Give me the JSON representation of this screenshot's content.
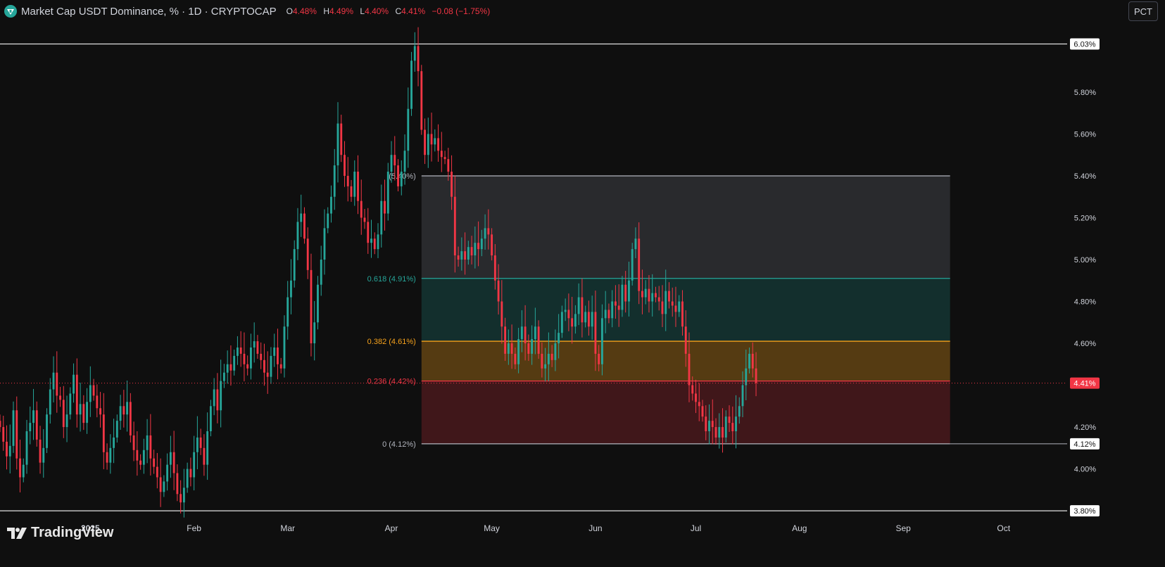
{
  "header": {
    "title": "Market Cap USDT Dominance, % · 1D · CRYPTOCAP",
    "open_label": "O",
    "open": "4.48%",
    "high_label": "H",
    "high": "4.49%",
    "low_label": "L",
    "low": "4.40%",
    "close_label": "C",
    "close": "4.41%",
    "change": "−0.08 (−1.75%)"
  },
  "scale_button": "PCT",
  "brand": "TradingView",
  "colors": {
    "background": "#0f0f0f",
    "up": "#26a69a",
    "down": "#f23645",
    "fib_0618": "#26a69a",
    "fib_0382": "#f7a21b",
    "fib_0236": "#f23645"
  },
  "chart_data": {
    "type": "candlestick",
    "symbol": "USDT.D",
    "y_unit": "%",
    "y_ticks": [
      4.0,
      4.2,
      4.6,
      4.8,
      5.0,
      5.2,
      5.4,
      5.6,
      5.8
    ],
    "y_tick_labels": [
      "4.00%",
      "4.20%",
      "4.60%",
      "4.80%",
      "5.00%",
      "5.20%",
      "5.40%",
      "5.60%",
      "5.80%"
    ],
    "ylim": [
      3.76,
      6.24
    ],
    "x_ticks": [
      "2025",
      "Feb",
      "Mar",
      "Apr",
      "May",
      "Jun",
      "Jul",
      "Aug",
      "Sep",
      "Oct"
    ],
    "x_range": [
      "2024-12-05",
      "2025-10-20"
    ],
    "horizontal_lines": [
      {
        "value": 6.03,
        "label": "6.03%"
      },
      {
        "value": 3.8,
        "label": "3.80%"
      }
    ],
    "last_price": {
      "value": 4.41,
      "label": "4.41%"
    },
    "fib_retracement": {
      "start_date": "2025-04-10",
      "end_date": "2025-09-15",
      "levels": [
        {
          "ratio": "0",
          "value": 4.12,
          "label": "0 (4.12%)",
          "axis_label": "4.12%"
        },
        {
          "ratio": "0.236",
          "value": 4.42,
          "label": "0.236 (4.42%)"
        },
        {
          "ratio": "0.382",
          "value": 4.61,
          "label": "0.382 (4.61%)"
        },
        {
          "ratio": "0.618",
          "value": 4.91,
          "label": "0.618 (4.91%)"
        },
        {
          "ratio": "1",
          "value": 5.4,
          "label": "(5.40%)"
        }
      ]
    },
    "candles": {
      "start": "2024-12-05",
      "close": [
        4.2,
        4.13,
        4.06,
        4.11,
        4.28,
        4.05,
        3.96,
        4.02,
        4.18,
        4.22,
        4.28,
        4.14,
        4.03,
        4.1,
        4.26,
        4.38,
        4.46,
        4.35,
        4.33,
        4.2,
        4.26,
        4.36,
        4.45,
        4.26,
        4.31,
        4.22,
        4.32,
        4.4,
        4.35,
        4.29,
        4.26,
        4.08,
        4.03,
        4.1,
        4.15,
        4.23,
        4.3,
        4.26,
        4.32,
        4.16,
        4.09,
        4.04,
        4.02,
        4.09,
        4.16,
        4.05,
        4.01,
        3.96,
        3.89,
        3.94,
        4.02,
        4.08,
        3.98,
        3.88,
        3.84,
        3.91,
        4.0,
        3.96,
        4.08,
        4.15,
        4.1,
        4.02,
        4.18,
        4.3,
        4.38,
        4.28,
        4.42,
        4.46,
        4.5,
        4.47,
        4.54,
        4.58,
        4.55,
        4.5,
        4.48,
        4.58,
        4.61,
        4.55,
        4.52,
        4.46,
        4.44,
        4.54,
        4.58,
        4.5,
        4.48,
        4.68,
        4.82,
        4.9,
        5.05,
        5.18,
        5.22,
        5.1,
        4.95,
        4.6,
        4.7,
        4.88,
        5.0,
        5.15,
        5.22,
        5.3,
        5.45,
        5.65,
        5.5,
        5.4,
        5.35,
        5.3,
        5.42,
        5.28,
        5.2,
        5.18,
        5.08,
        5.1,
        5.05,
        5.12,
        5.28,
        5.22,
        5.42,
        5.5,
        5.45,
        5.35,
        5.42,
        5.52,
        5.72,
        5.95,
        6.02,
        5.9,
        5.62,
        5.5,
        5.6,
        5.55,
        5.58,
        5.52,
        5.49,
        5.48,
        5.42,
        5.3,
        5.02,
        5.0,
        5.04,
        5.0,
        5.06,
        5.02,
        5.08,
        5.05,
        5.1,
        5.15,
        5.12,
        5.02,
        4.9,
        4.8,
        4.68,
        4.55,
        4.6,
        4.55,
        4.5,
        4.62,
        4.68,
        4.6,
        4.55,
        4.62,
        4.68,
        4.55,
        4.48,
        4.5,
        4.55,
        4.52,
        4.6,
        4.65,
        4.75,
        4.76,
        4.72,
        4.68,
        4.74,
        4.82,
        4.7,
        4.75,
        4.68,
        4.75,
        4.55,
        4.5,
        4.72,
        4.76,
        4.72,
        4.8,
        4.78,
        4.76,
        4.88,
        4.8,
        4.9,
        5.05,
        5.1,
        4.85,
        4.82,
        4.86,
        4.8,
        4.84,
        4.82,
        4.8,
        4.74,
        4.85,
        4.8,
        4.78,
        4.75,
        4.8,
        4.68,
        4.55,
        4.4,
        4.36,
        4.32,
        4.3,
        4.25,
        4.18,
        4.23,
        4.2,
        4.15,
        4.2,
        4.15,
        4.25,
        4.22,
        4.18,
        4.25,
        4.3,
        4.4,
        4.48,
        4.55,
        4.48,
        4.41
      ],
      "open_high_low": "estimated"
    }
  }
}
